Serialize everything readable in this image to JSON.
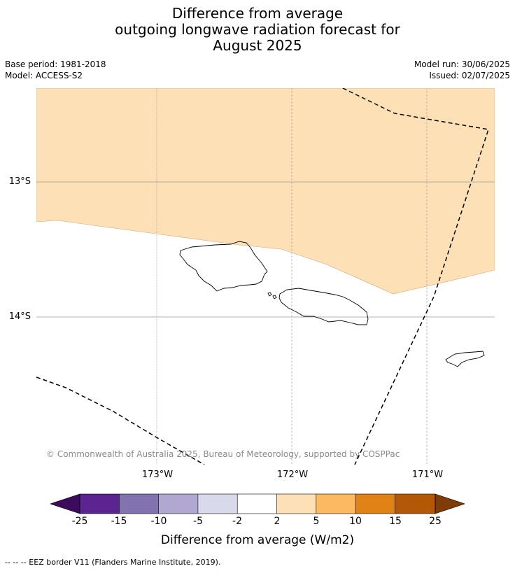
{
  "title": {
    "line1": "Difference from average",
    "line2": "outgoing longwave radiation forecast for",
    "line3": "August 2025"
  },
  "meta": {
    "base_period": "Base period: 1981-2018",
    "model": "Model: ACCESS-S2",
    "model_run": "Model run: 30/06/2025",
    "issued": "Issued: 02/07/2025"
  },
  "map": {
    "lat_labels": [
      "13°S",
      "14°S"
    ],
    "lon_labels": [
      "173°W",
      "172°W",
      "171°W"
    ],
    "anomaly_region_color": "#fde0b6",
    "copyright": "© Commonwealth of Australia 2025, Bureau of Meteorology, supported by COSPPac"
  },
  "colorbar": {
    "tick_labels": [
      "-25",
      "-15",
      "-10",
      "-5",
      "-2",
      "2",
      "5",
      "10",
      "15",
      "25"
    ],
    "colors": [
      "#3d0b5b",
      "#5c2490",
      "#8272b0",
      "#b1a8d2",
      "#d8d9eb",
      "#ffffff",
      "#fde0b6",
      "#fdb862",
      "#e08216",
      "#b35806",
      "#7f3b08"
    ],
    "title": "Difference from average (W/m2)"
  },
  "legend_note": "--  --  -- EEZ border V11 (Flanders Marine Institute, 2019)."
}
